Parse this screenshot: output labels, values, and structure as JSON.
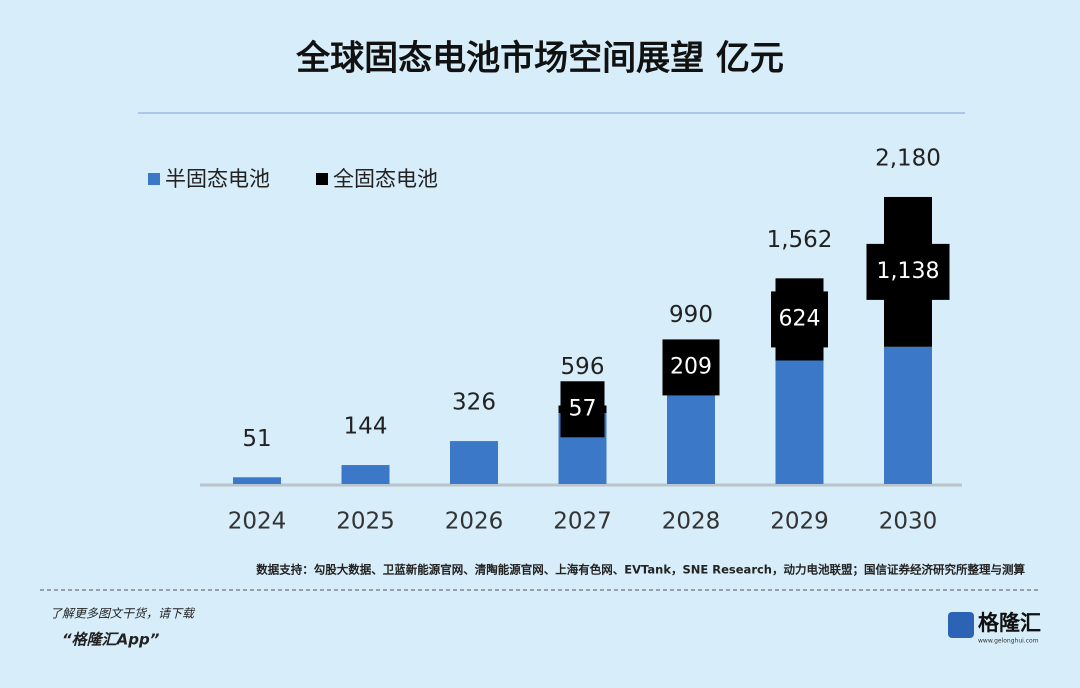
{
  "chart_data": {
    "type": "bar",
    "stacked": true,
    "title": "全球固态电池市场空间展望 亿元",
    "categories": [
      "2024",
      "2025",
      "2026",
      "2027",
      "2028",
      "2029",
      "2030"
    ],
    "series": [
      {
        "name": "半固态电池",
        "color": "#3b78c8",
        "values": [
          51,
          144,
          326,
          539,
          781,
          938,
          1042
        ]
      },
      {
        "name": "全固态电池",
        "color": "#000000",
        "values": [
          null,
          null,
          null,
          57,
          209,
          624,
          1138
        ],
        "value_labels": [
          null,
          null,
          null,
          "57",
          "209",
          "624",
          "1,138"
        ]
      }
    ],
    "totals": [
      51,
      144,
      326,
      596,
      990,
      1562,
      2180
    ],
    "total_labels": [
      "51",
      "144",
      "326",
      "596",
      "990",
      "1,562",
      "2,180"
    ],
    "ylim": [
      0,
      2400
    ],
    "source": "数据支持：勾股大数据、卫蓝新能源官网、清陶能源官网、上海有色网、EVTank，SNE Research，动力电池联盟；国信证券经济研究所整理与测算"
  },
  "footer": {
    "prompt": "了解更多图文干货，请下载",
    "app": "“格隆汇App”",
    "logo": "格隆汇",
    "logo_url": "www.gelonghui.com"
  }
}
